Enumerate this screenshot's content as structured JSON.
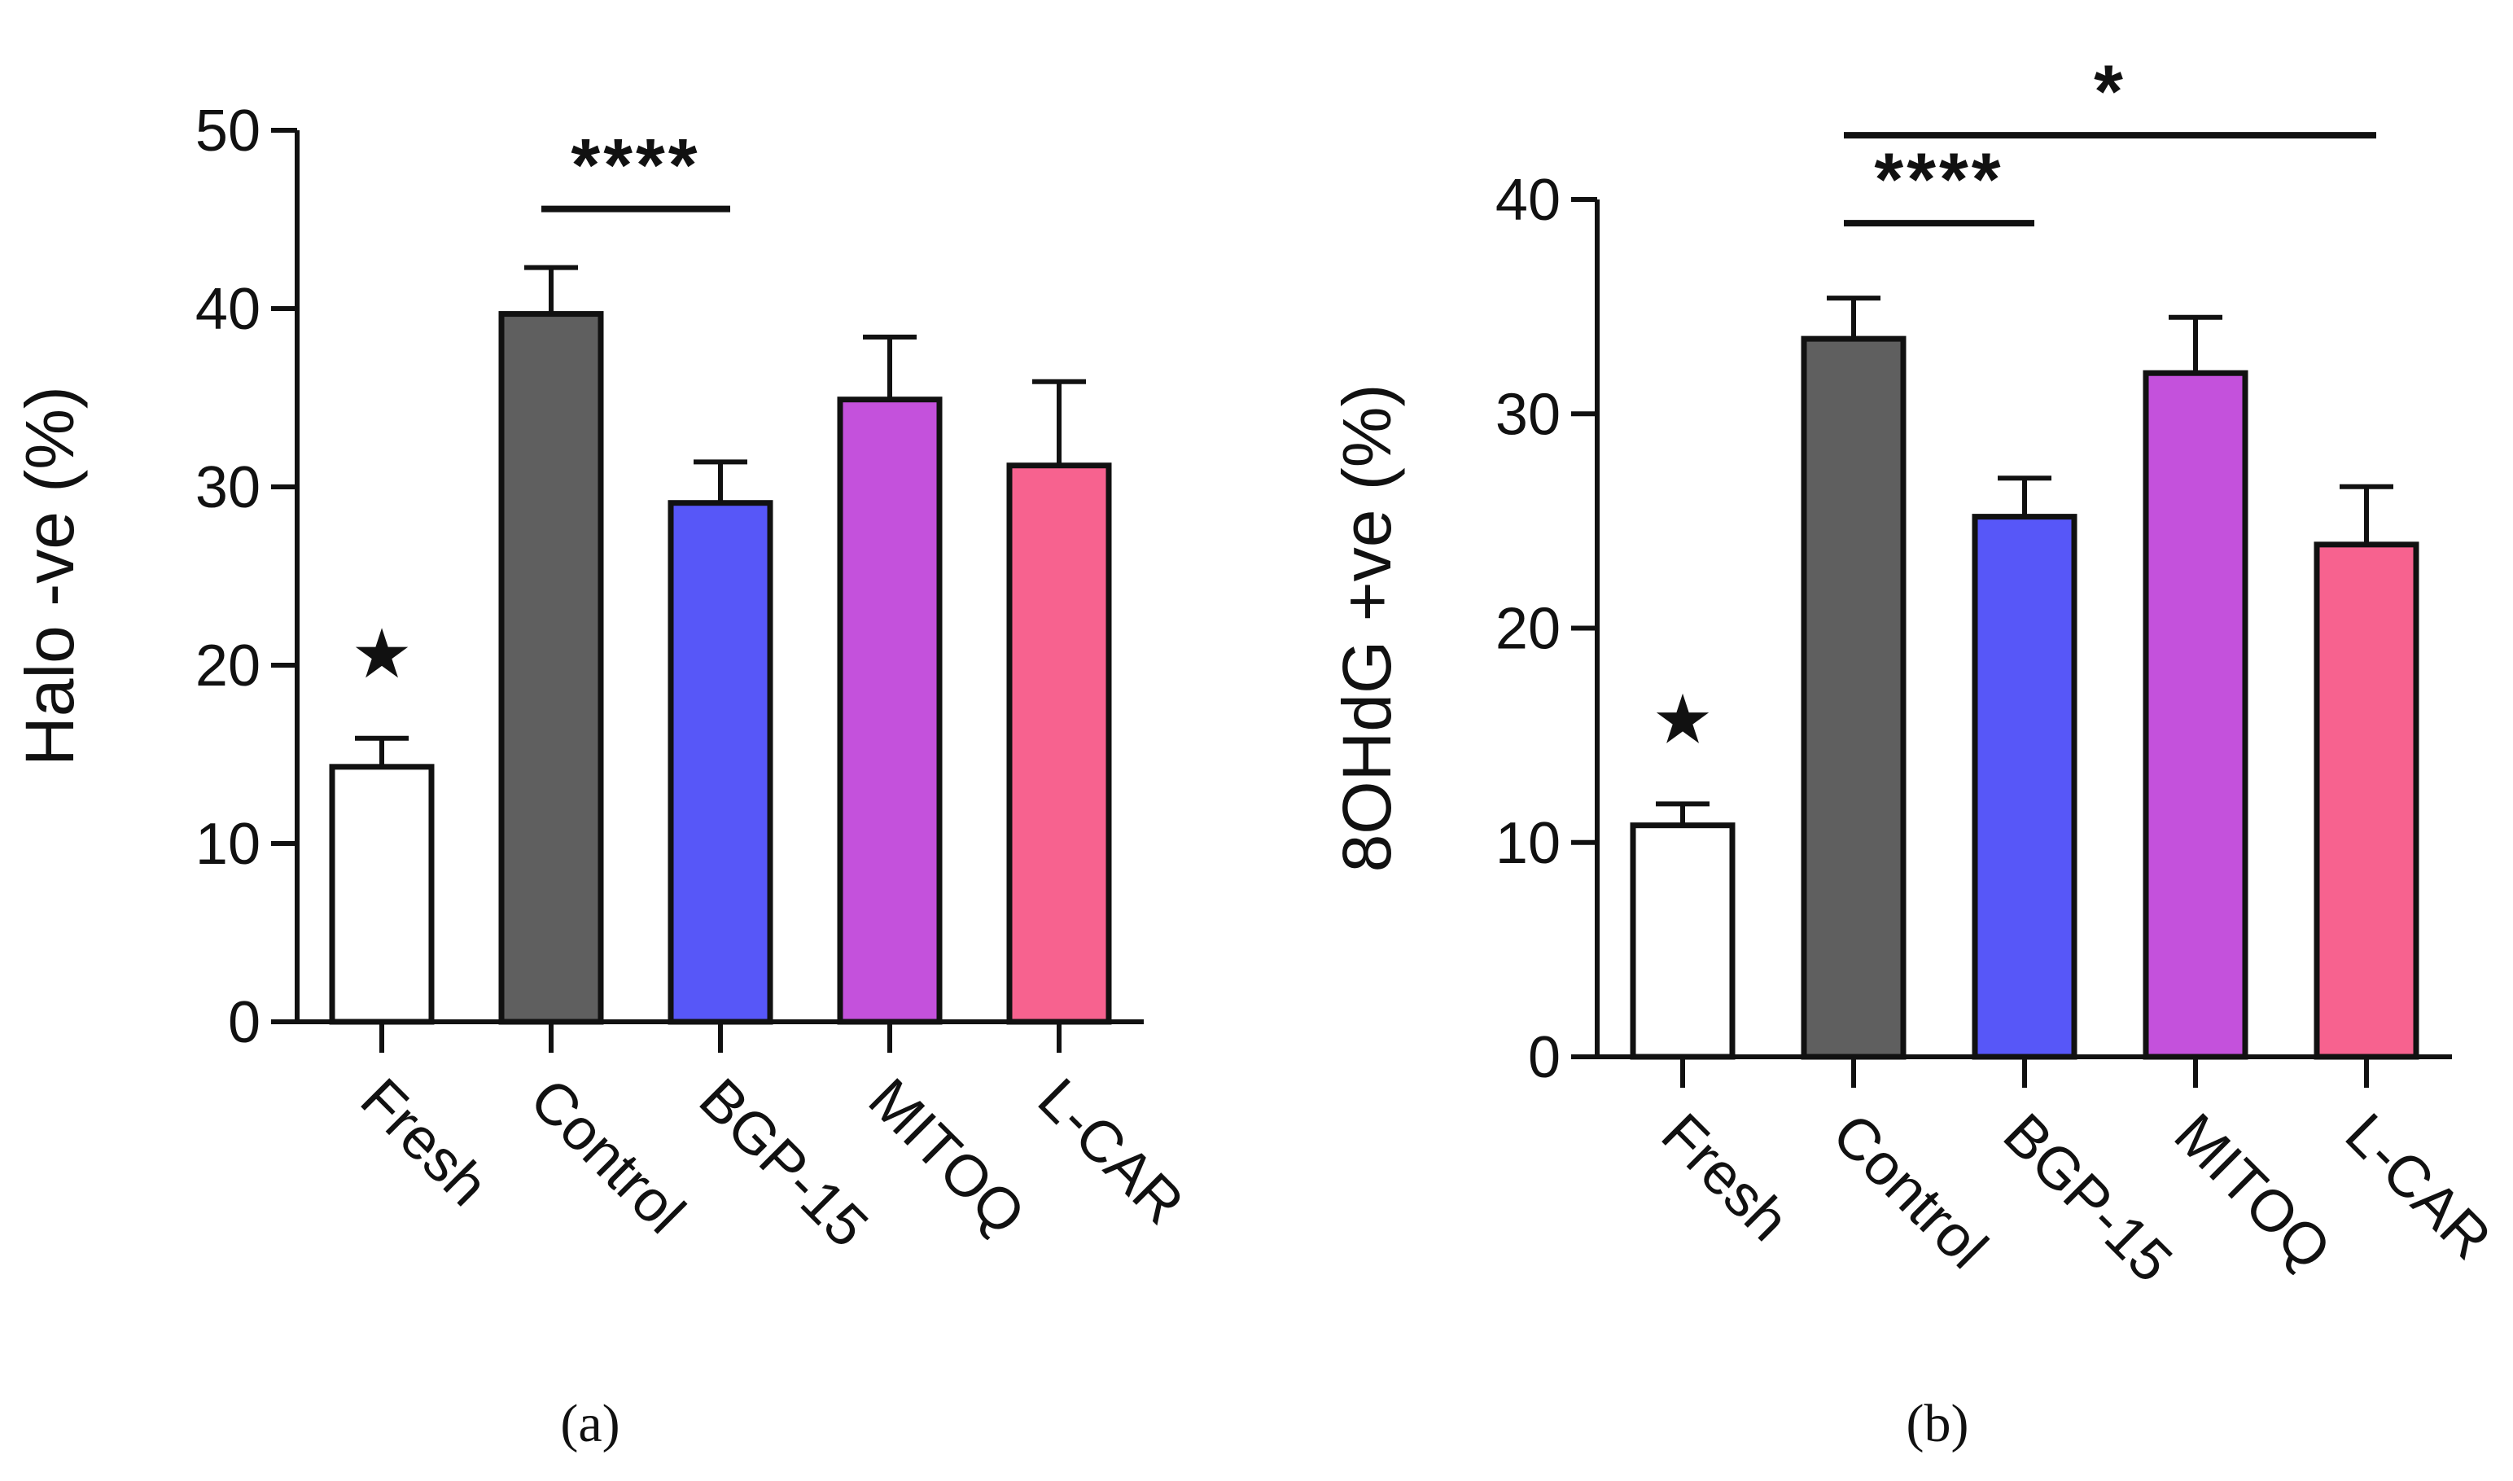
{
  "chart_data": [
    {
      "type": "bar",
      "panel_label": "(a)",
      "title": "",
      "xlabel": "",
      "ylabel": "Halo -ve (%)",
      "ylim": [
        0,
        50
      ],
      "yticks": [
        "0",
        "10",
        "20",
        "30",
        "40",
        "50"
      ],
      "grid": false,
      "categories": [
        "Fresh",
        "Control",
        "BGP-15",
        "MITOQ",
        "L-CAR"
      ],
      "values": [
        14.3,
        39.7,
        29.1,
        34.9,
        31.2
      ],
      "errors": [
        1.6,
        2.6,
        2.3,
        3.5,
        4.7
      ],
      "colors": [
        "#ffffff",
        "#5f5f5f",
        "#5757f8",
        "#c451dc",
        "#f7628f"
      ],
      "markers": [
        {
          "category": "Fresh",
          "symbol": "★"
        }
      ],
      "significance": [
        {
          "from": "Control",
          "to": "BGP-15",
          "label": "****"
        }
      ]
    },
    {
      "type": "bar",
      "panel_label": "(b)",
      "title": "",
      "xlabel": "",
      "ylabel": "8OHdG +ve (%)",
      "ylim": [
        0,
        40
      ],
      "yticks": [
        "0",
        "10",
        "20",
        "30",
        "40"
      ],
      "grid": false,
      "categories": [
        "Fresh",
        "Control",
        "BGP-15",
        "MITOQ",
        "L-CAR"
      ],
      "values": [
        10.8,
        33.5,
        25.2,
        31.9,
        23.9
      ],
      "errors": [
        1.0,
        1.9,
        1.8,
        2.6,
        2.7
      ],
      "colors": [
        "#ffffff",
        "#5f5f5f",
        "#5757f8",
        "#c451dc",
        "#f7628f"
      ],
      "markers": [
        {
          "category": "Fresh",
          "symbol": "★"
        }
      ],
      "significance": [
        {
          "from": "Control",
          "to": "BGP-15",
          "label": "****"
        },
        {
          "from": "Control",
          "to": "L-CAR",
          "label": "*"
        }
      ]
    }
  ]
}
